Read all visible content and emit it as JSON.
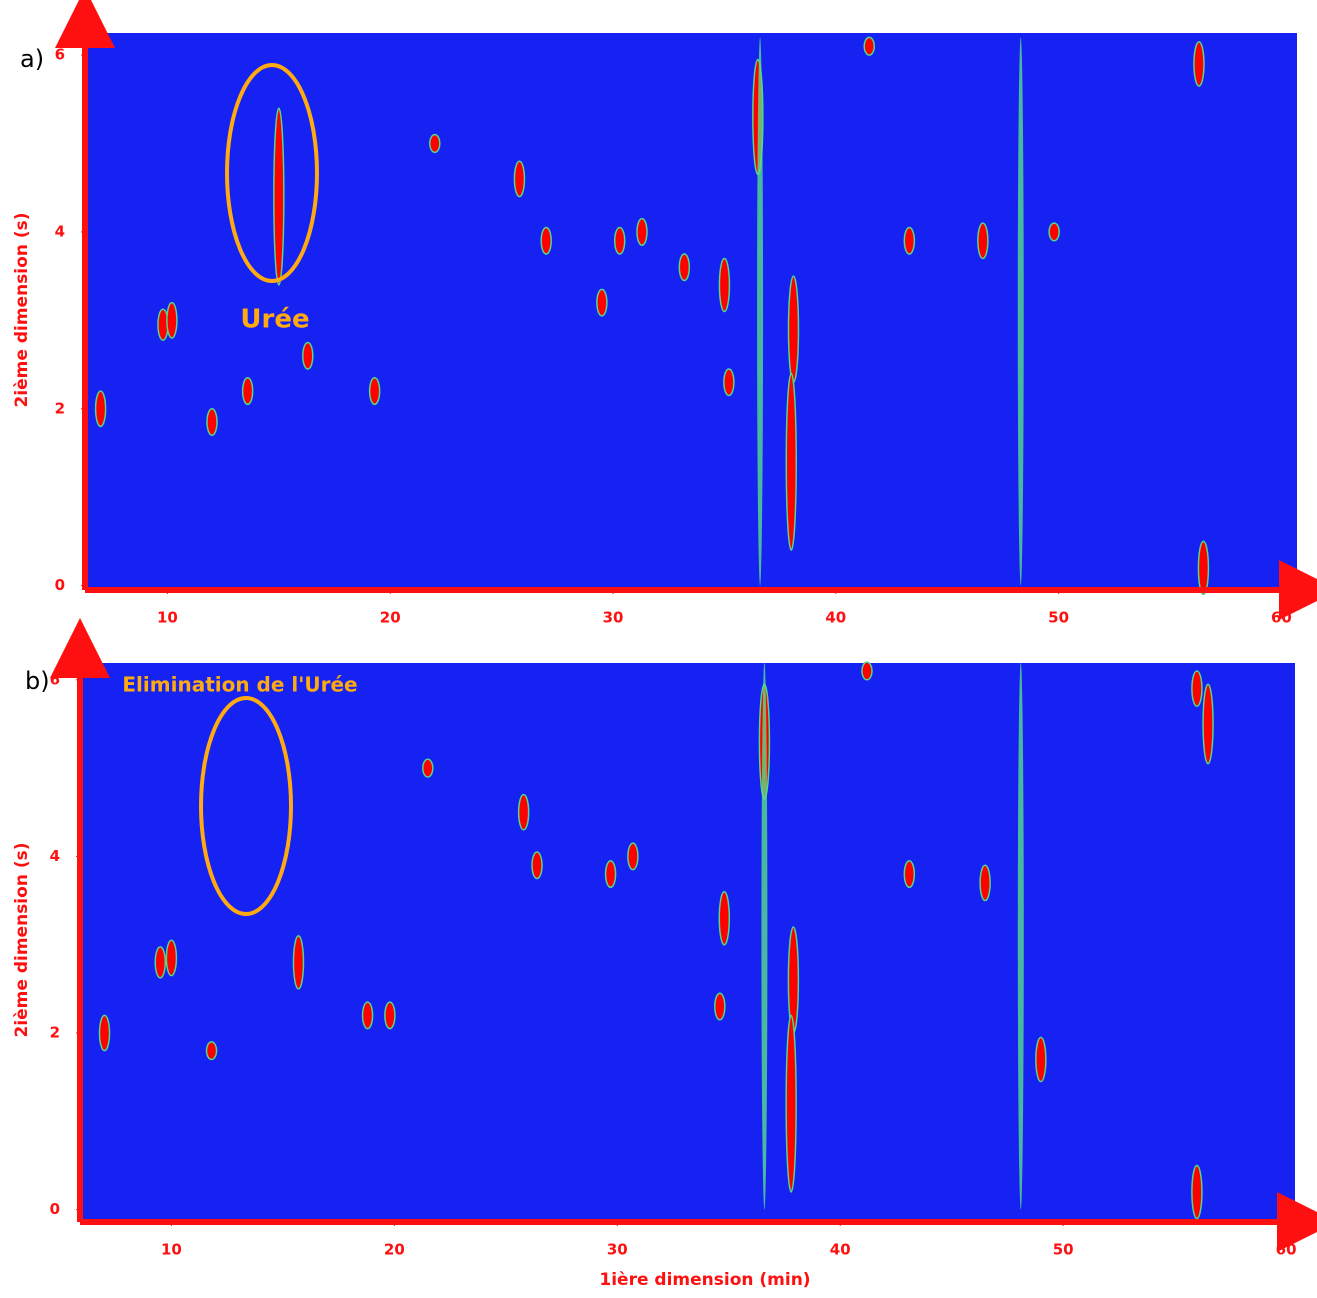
{
  "chart_data": [
    {
      "type": "scatter",
      "panel_label": "a)",
      "y_label": "2ième dimension (s)",
      "annotation": "Urée",
      "xlim": [
        6.3,
        60.7
      ],
      "ylim": [
        -0.05,
        6.25
      ],
      "xticks": [
        10,
        20,
        30,
        40,
        50,
        60
      ],
      "yticks": [
        0,
        2,
        4,
        6
      ],
      "background": "#1622f2",
      "series": [
        {
          "color": "#ff0000",
          "x": [
            15,
            12,
            9.8,
            10.2,
            16.3,
            36.5,
            38.1,
            38,
            56.3,
            56.5,
            46.6,
            49.8,
            22,
            25.8,
            31.3,
            30.3,
            35,
            35.2,
            19.3,
            13.6,
            7,
            27,
            41.5,
            43.3,
            33.2,
            29.5
          ],
          "values": [
            4.4,
            1.85,
            2.95,
            3,
            2.6,
            5.3,
            2.9,
            1.4,
            5.9,
            0.2,
            3.9,
            4,
            5,
            4.6,
            4,
            3.9,
            3.4,
            2.3,
            2.2,
            2.2,
            2,
            3.9,
            6.1,
            3.9,
            3.6,
            3.2
          ],
          "spans": [
            2,
            0.3,
            0.35,
            0.4,
            0.3,
            1.3,
            1.2,
            2,
            0.5,
            0.6,
            0.4,
            0.2,
            0.2,
            0.4,
            0.3,
            0.3,
            0.6,
            0.3,
            0.3,
            0.3,
            0.4,
            0.3,
            0.2,
            0.3,
            0.3,
            0.3
          ]
        },
        {
          "color": "#55e08a",
          "x": [
            48.3,
            36.6
          ],
          "values": [
            3.1,
            3.1
          ],
          "spans": [
            6.2,
            6.2
          ]
        }
      ]
    },
    {
      "type": "scatter",
      "panel_label": "b)",
      "y_label": "2ième dimension (s)",
      "annotation": "Elimination de l'Urée",
      "x_label": "1ière dimension (min)",
      "xlim": [
        5.9,
        60.4
      ],
      "ylim": [
        -0.14,
        6.19
      ],
      "xticks": [
        10,
        20,
        30,
        40,
        50,
        60
      ],
      "yticks": [
        0,
        2,
        4,
        6
      ],
      "background": "#1622f2",
      "series": [
        {
          "color": "#ff0000",
          "x": [
            15.7,
            11.8,
            9.5,
            10,
            36.6,
            37.9,
            37.8,
            56,
            56.5,
            56,
            46.5,
            49,
            21.5,
            25.8,
            30.7,
            29.7,
            34.8,
            34.6,
            18.8,
            7,
            26.4,
            41.2,
            43.1,
            19.8
          ],
          "values": [
            2.8,
            1.8,
            2.8,
            2.85,
            5.3,
            2.6,
            1.2,
            5.9,
            5.5,
            0.2,
            3.7,
            1.7,
            5,
            4.5,
            4,
            3.8,
            3.3,
            2.3,
            2.2,
            2,
            3.9,
            6.1,
            3.8,
            2.2
          ],
          "spans": [
            0.6,
            0.2,
            0.35,
            0.4,
            1.3,
            1.2,
            2,
            0.4,
            0.9,
            0.6,
            0.4,
            0.5,
            0.2,
            0.4,
            0.3,
            0.3,
            0.6,
            0.3,
            0.3,
            0.4,
            0.3,
            0.2,
            0.3,
            0.3
          ]
        },
        {
          "color": "#55e08a",
          "x": [
            48.1,
            36.6
          ],
          "values": [
            3.1,
            3.1
          ],
          "spans": [
            6.2,
            6.2
          ]
        }
      ]
    }
  ]
}
